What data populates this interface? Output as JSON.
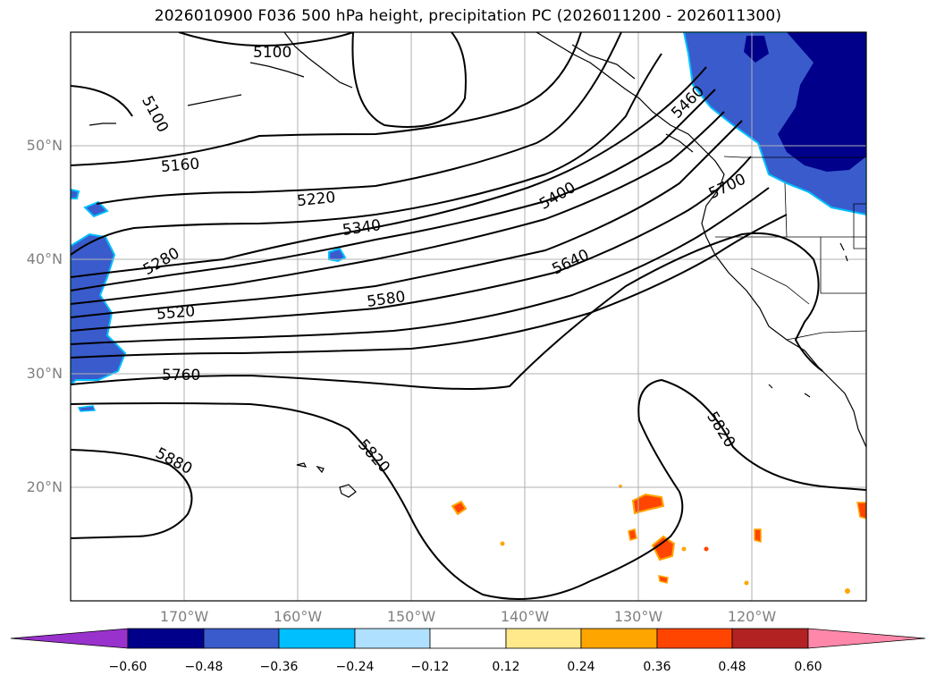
{
  "title": "2026010900 F036 500 hPa height, precipitation PC (2026011200 - 2026011300)",
  "map": {
    "lat_ticks": [
      "50°N",
      "40°N",
      "30°N",
      "20°N"
    ],
    "lon_ticks": [
      "170°W",
      "160°W",
      "150°W",
      "140°W",
      "130°W",
      "120°W"
    ],
    "contour_labels": [
      "5100",
      "5100",
      "5160",
      "5220",
      "5280",
      "5340",
      "5400",
      "5460",
      "5520",
      "5580",
      "5640",
      "5700",
      "5760",
      "5820",
      "5820",
      "5880"
    ],
    "colors": {
      "gridline": "#b0b0b0",
      "contour": "#000000",
      "land": "#ffffff"
    }
  },
  "colorbar": {
    "ticks": [
      "−0.60",
      "−0.48",
      "−0.36",
      "−0.24",
      "−0.12",
      "0.12",
      "0.24",
      "0.36",
      "0.48",
      "0.60"
    ],
    "colors": [
      "#9932cc",
      "#00008b",
      "#3a5bcc",
      "#00bfff",
      "#b0e0ff",
      "#ffffff",
      "#ffe98a",
      "#ffa500",
      "#ff4500",
      "#b22222",
      "#ff88aa"
    ]
  }
}
